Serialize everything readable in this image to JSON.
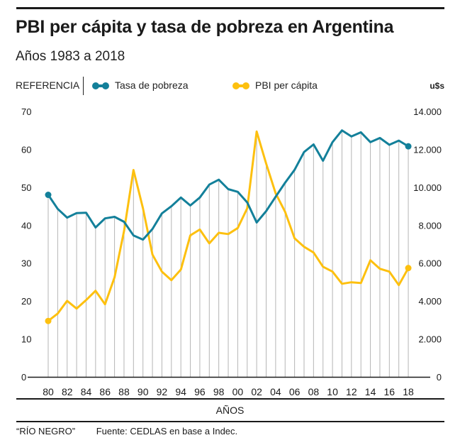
{
  "header": {
    "title": "PBI per cápita y tasa de pobreza en Argentina",
    "subtitle": "Años 1983 a 2018"
  },
  "legend": {
    "label": "REFERENCIA",
    "items": [
      {
        "name": "Tasa de pobreza",
        "color": "#13809a"
      },
      {
        "name": "PBI per cápita",
        "color": "#fdc00f"
      }
    ],
    "right_unit": "u$s"
  },
  "footer": {
    "credit": "“RÍO NEGRO”",
    "source": "Fuente: CEDLAS en base a Indec."
  },
  "chart_data": {
    "type": "line",
    "title": "PBI per cápita y tasa de pobreza en Argentina",
    "subtitle": "Años 1983 a 2018",
    "xlabel": "AÑOS",
    "ylabel_left": "",
    "ylabel_right": "u$s",
    "x": [
      1980,
      1981,
      1982,
      1983,
      1984,
      1985,
      1986,
      1987,
      1988,
      1989,
      1990,
      1991,
      1992,
      1993,
      1994,
      1995,
      1996,
      1997,
      1998,
      1999,
      2000,
      2001,
      2002,
      2003,
      2004,
      2005,
      2006,
      2007,
      2008,
      2009,
      2010,
      2011,
      2012,
      2013,
      2014,
      2015,
      2016,
      2017,
      2018
    ],
    "x_tick_labels": [
      "80",
      "82",
      "84",
      "86",
      "88",
      "90",
      "92",
      "94",
      "96",
      "98",
      "00",
      "02",
      "04",
      "06",
      "08",
      "10",
      "12",
      "14",
      "16",
      "18"
    ],
    "x_tick_years": [
      1980,
      1982,
      1984,
      1986,
      1988,
      1990,
      1992,
      1994,
      1996,
      1998,
      2000,
      2002,
      2004,
      2006,
      2008,
      2010,
      2012,
      2014,
      2016,
      2018
    ],
    "y_left": {
      "range": [
        0,
        70
      ],
      "ticks": [
        0,
        10,
        20,
        30,
        40,
        50,
        60,
        70
      ],
      "tick_labels": [
        "0",
        "10",
        "20",
        "30",
        "40",
        "50",
        "60",
        "70"
      ]
    },
    "y_right": {
      "range": [
        0,
        14000
      ],
      "ticks": [
        0,
        2000,
        4000,
        6000,
        8000,
        10000,
        12000,
        14000
      ],
      "tick_labels": [
        "0",
        "2.000",
        "4.000",
        "6.000",
        "8.000",
        "10.000",
        "12.000",
        "14.000"
      ]
    },
    "grid": "vertical lines per year",
    "legend_position": "top-left",
    "series": [
      {
        "name": "Tasa de pobreza",
        "axis": "left",
        "color": "#13809a",
        "values": [
          48.0,
          44.3,
          42.0,
          43.2,
          43.3,
          39.4,
          41.8,
          42.2,
          40.9,
          37.3,
          36.2,
          39.0,
          43.1,
          45.0,
          47.3,
          45.2,
          47.3,
          50.7,
          52.0,
          49.5,
          48.8,
          46.0,
          40.7,
          43.7,
          47.5,
          51.2,
          54.6,
          59.3,
          61.3,
          57.0,
          61.9,
          65.0,
          63.4,
          64.5,
          61.9,
          63.0,
          61.2,
          62.3,
          60.8
        ]
      },
      {
        "name": "PBI per cápita",
        "axis": "right",
        "color": "#fdc00f",
        "values": [
          2950,
          3340,
          4010,
          3600,
          4050,
          4540,
          3830,
          5250,
          7690,
          10910,
          8890,
          6450,
          5550,
          5100,
          5660,
          7460,
          7770,
          7040,
          7600,
          7530,
          7850,
          8890,
          12940,
          11250,
          9680,
          8700,
          7310,
          6860,
          6560,
          5810,
          5550,
          4910,
          4990,
          4950,
          6150,
          5700,
          5550,
          4840,
          5740
        ]
      }
    ]
  }
}
